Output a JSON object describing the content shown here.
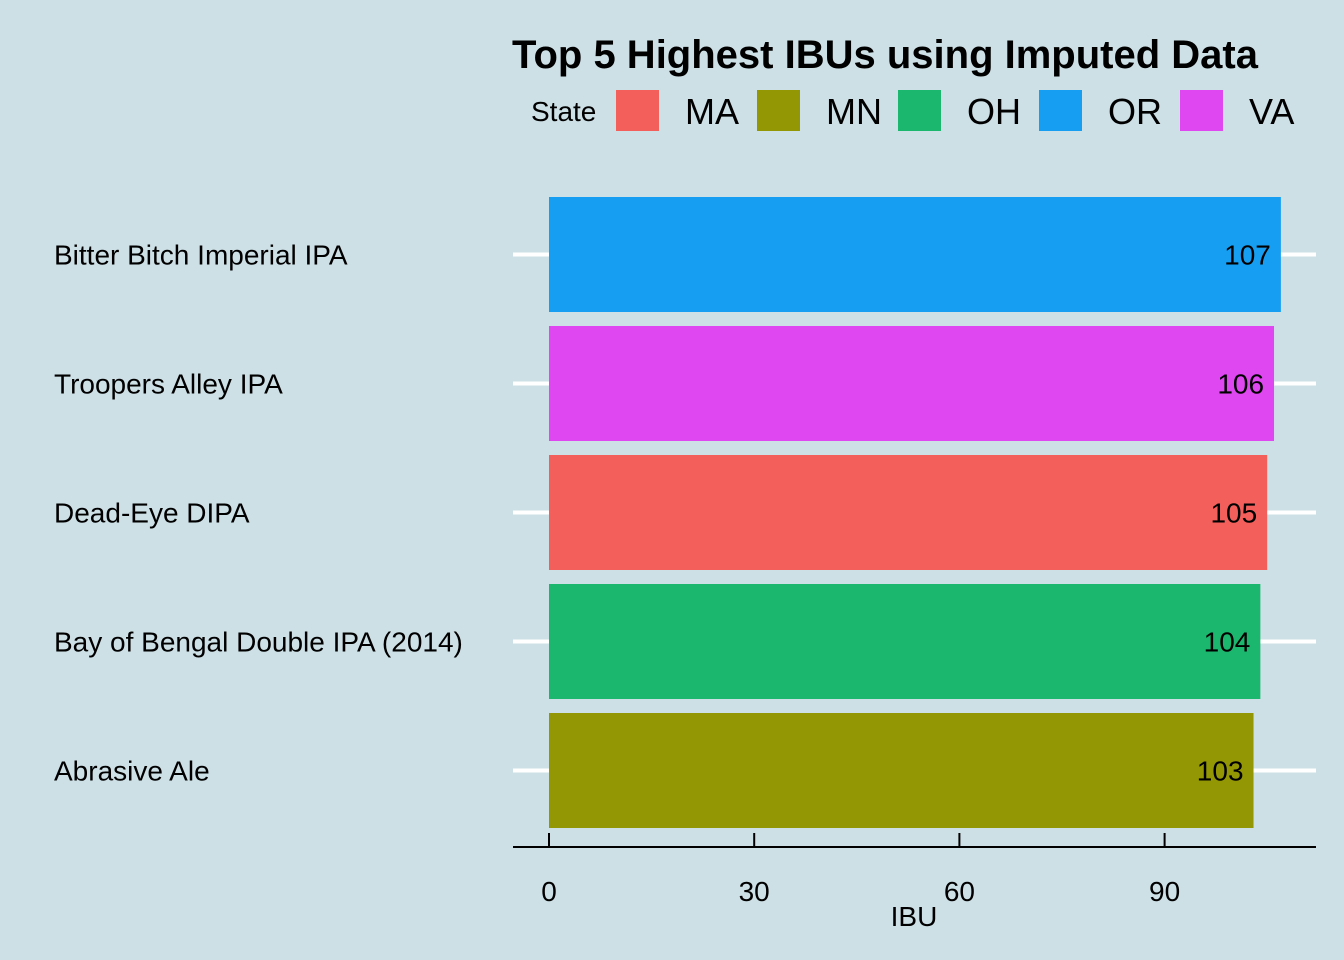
{
  "chart_data": {
    "type": "bar",
    "orientation": "horizontal",
    "title": "Top 5 Highest IBUs using Imputed Data",
    "xlabel": "IBU",
    "ylabel": "",
    "xlim": [
      0,
      107
    ],
    "x_ticks": [
      0,
      30,
      60,
      90
    ],
    "x_tick_labels": [
      "0",
      "30",
      "60",
      "90"
    ],
    "grid": "horizontal major lines",
    "legend": {
      "title": "State",
      "position": "top",
      "items": [
        {
          "label": "MA",
          "color": "#F35F5B"
        },
        {
          "label": "MN",
          "color": "#939703"
        },
        {
          "label": "OH",
          "color": "#1BB76E"
        },
        {
          "label": "OR",
          "color": "#169FF2"
        },
        {
          "label": "VA",
          "color": "#DF47F0"
        }
      ]
    },
    "categories": [
      "Bitter Bitch Imperial IPA",
      "Troopers Alley IPA",
      "Dead-Eye DIPA",
      "Bay of Bengal Double IPA (2014)",
      "Abrasive Ale"
    ],
    "values": [
      107,
      106,
      105,
      104,
      103
    ],
    "value_labels": [
      "107",
      "106",
      "105",
      "104",
      "103"
    ],
    "states": [
      "OR",
      "VA",
      "MA",
      "OH",
      "MN"
    ]
  }
}
